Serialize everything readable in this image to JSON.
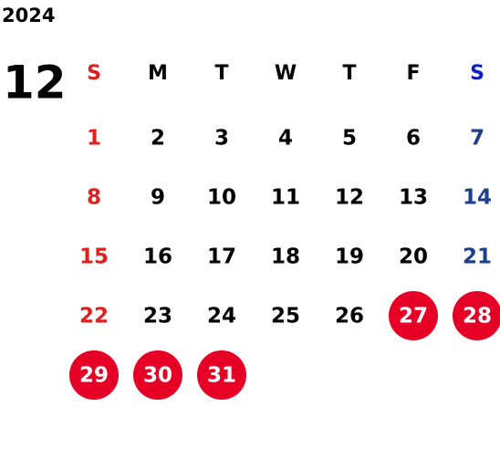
{
  "year": "2024",
  "month": "12",
  "weekdays": [
    "S",
    "M",
    "T",
    "W",
    "T",
    "F",
    "S"
  ],
  "weeks": [
    [
      1,
      2,
      3,
      4,
      5,
      6,
      7
    ],
    [
      8,
      9,
      10,
      11,
      12,
      13,
      14
    ],
    [
      15,
      16,
      17,
      18,
      19,
      20,
      21
    ],
    [
      22,
      23,
      24,
      25,
      26,
      27,
      28
    ],
    [
      29,
      30,
      31,
      null,
      null,
      null,
      null
    ]
  ],
  "marked_days": [
    27,
    28,
    29,
    30,
    31
  ],
  "colors": {
    "sunday": "#e0201f",
    "saturday_header": "#0a1fd0",
    "saturday": "#1e3f8c",
    "weekday": "#000000",
    "marked": "#e60026",
    "marked_text": "#ffffff"
  }
}
